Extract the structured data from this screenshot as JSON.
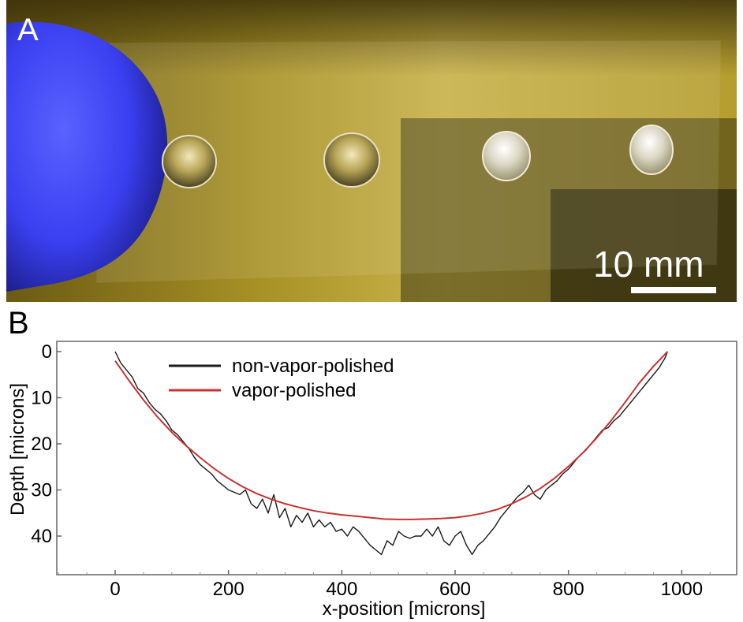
{
  "panel_a": {
    "label": "A",
    "scale_bar_label": "10 mm",
    "colors": {
      "glove": "#3a3ff0",
      "background": "#b9a236",
      "slide_edge": "#e8e4c8",
      "droplet": "#d8d4c4"
    }
  },
  "panel_b": {
    "label": "B"
  },
  "chart_data": {
    "type": "line",
    "xlabel": "x-position [microns]",
    "ylabel": "Depth [microns]",
    "xlim": [
      -100,
      1100
    ],
    "ylim": [
      0,
      47
    ],
    "y_inverted": true,
    "x_ticks": [
      0,
      200,
      400,
      600,
      800,
      1000
    ],
    "y_ticks": [
      0,
      10,
      20,
      30,
      40
    ],
    "grid": false,
    "legend": "top-left",
    "series": [
      {
        "name": "non-vapor-polished",
        "color": "#1a1a1a",
        "x": [
          0,
          10,
          20,
          30,
          40,
          50,
          60,
          70,
          80,
          90,
          100,
          110,
          120,
          130,
          140,
          150,
          160,
          170,
          180,
          190,
          200,
          210,
          220,
          230,
          240,
          250,
          260,
          270,
          280,
          290,
          300,
          310,
          320,
          330,
          340,
          350,
          360,
          370,
          380,
          390,
          400,
          410,
          420,
          430,
          440,
          450,
          460,
          470,
          480,
          490,
          500,
          510,
          520,
          530,
          540,
          550,
          560,
          570,
          580,
          590,
          600,
          610,
          620,
          630,
          640,
          650,
          660,
          670,
          680,
          690,
          700,
          710,
          720,
          730,
          740,
          750,
          760,
          770,
          780,
          790,
          800,
          810,
          820,
          830,
          840,
          850,
          860,
          870,
          880,
          890,
          900,
          910,
          920,
          930,
          940,
          950,
          960,
          970,
          975
        ],
        "y": [
          0,
          2.5,
          4,
          5.5,
          8,
          9,
          11,
          12.5,
          13.5,
          15,
          17,
          18,
          19.5,
          21,
          23,
          24.5,
          25.5,
          26.5,
          28,
          29,
          30,
          30.5,
          31,
          30,
          33,
          34,
          32,
          35,
          31,
          36,
          34,
          38,
          35.5,
          37,
          35,
          38,
          36.5,
          38,
          37,
          39,
          38.5,
          40,
          38,
          39,
          40.5,
          42,
          43,
          44,
          41,
          42,
          39,
          40,
          40.5,
          40,
          40,
          38.5,
          40,
          38,
          41,
          42,
          40,
          39,
          42,
          44,
          42,
          41,
          39.5,
          38,
          36,
          34.5,
          33,
          31.5,
          30.5,
          29,
          31,
          32,
          30,
          29,
          28,
          26.5,
          25.5,
          24,
          22.5,
          21.5,
          20,
          18.5,
          17,
          16.5,
          15,
          14,
          12.5,
          11,
          9.5,
          8,
          6.5,
          5,
          3.5,
          1.5,
          0
        ]
      },
      {
        "name": "vapor-polished",
        "color": "#c83232",
        "x": [
          0,
          25,
          50,
          75,
          100,
          125,
          150,
          175,
          200,
          225,
          250,
          275,
          300,
          325,
          350,
          375,
          400,
          425,
          450,
          475,
          500,
          525,
          550,
          575,
          600,
          625,
          650,
          675,
          700,
          725,
          750,
          775,
          800,
          825,
          850,
          875,
          900,
          925,
          950,
          975
        ],
        "y": [
          2,
          6.4,
          10.5,
          14.2,
          17.5,
          20.4,
          23.0,
          25.4,
          27.5,
          29.3,
          30.8,
          32.0,
          33.0,
          33.8,
          34.5,
          35.0,
          35.4,
          35.7,
          36.0,
          36.3,
          36.4,
          36.4,
          36.3,
          36.2,
          36.0,
          35.6,
          35.0,
          34.2,
          33.0,
          31.5,
          29.7,
          27.5,
          24.9,
          22.0,
          18.7,
          15.0,
          11.0,
          6.8,
          3.2,
          0
        ]
      }
    ]
  }
}
